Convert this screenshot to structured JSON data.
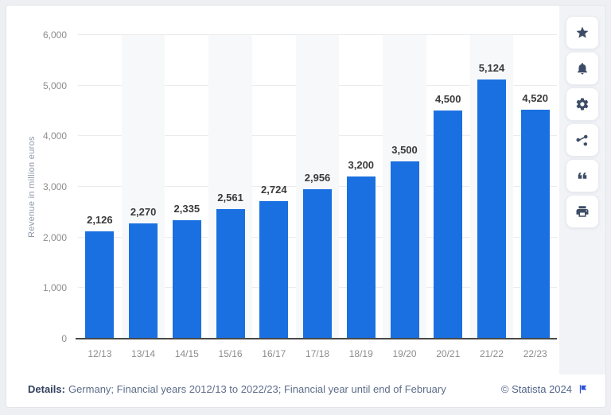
{
  "chart_data": {
    "type": "bar",
    "title": "",
    "categories": [
      "12/13",
      "13/14",
      "14/15",
      "15/16",
      "16/17",
      "17/18",
      "18/19",
      "19/20",
      "20/21",
      "21/22",
      "22/23"
    ],
    "values": [
      2126,
      2270,
      2335,
      2561,
      2724,
      2956,
      3200,
      3500,
      4500,
      5124,
      4520
    ],
    "value_labels": [
      "2,126",
      "2,270",
      "2,335",
      "2,561",
      "2,724",
      "2,956",
      "3,200",
      "3,500",
      "4,500",
      "5,124",
      "4,520"
    ],
    "xlabel": "",
    "ylabel": "Revenue in million euros",
    "ylim": [
      0,
      6000
    ],
    "yticks": [
      {
        "value": 0,
        "label": "0"
      },
      {
        "value": 1000,
        "label": "1,000"
      },
      {
        "value": 2000,
        "label": "2,000"
      },
      {
        "value": 3000,
        "label": "3,000"
      },
      {
        "value": 4000,
        "label": "4,000"
      },
      {
        "value": 5000,
        "label": "5,000"
      },
      {
        "value": 6000,
        "label": "6,000"
      }
    ],
    "grid": true,
    "legend": false,
    "bar_color": "#1a70e0",
    "band_color": "#f7f8fa"
  },
  "sidebar": {
    "buttons": [
      "star-icon",
      "bell-icon",
      "gear-icon",
      "share-icon",
      "quote-icon",
      "printer-icon"
    ]
  },
  "footer": {
    "details_label": "Details:",
    "details_text": "Germany; Financial years 2012/13 to 2022/23; Financial year until end of February",
    "copyright": "© Statista 2024"
  }
}
